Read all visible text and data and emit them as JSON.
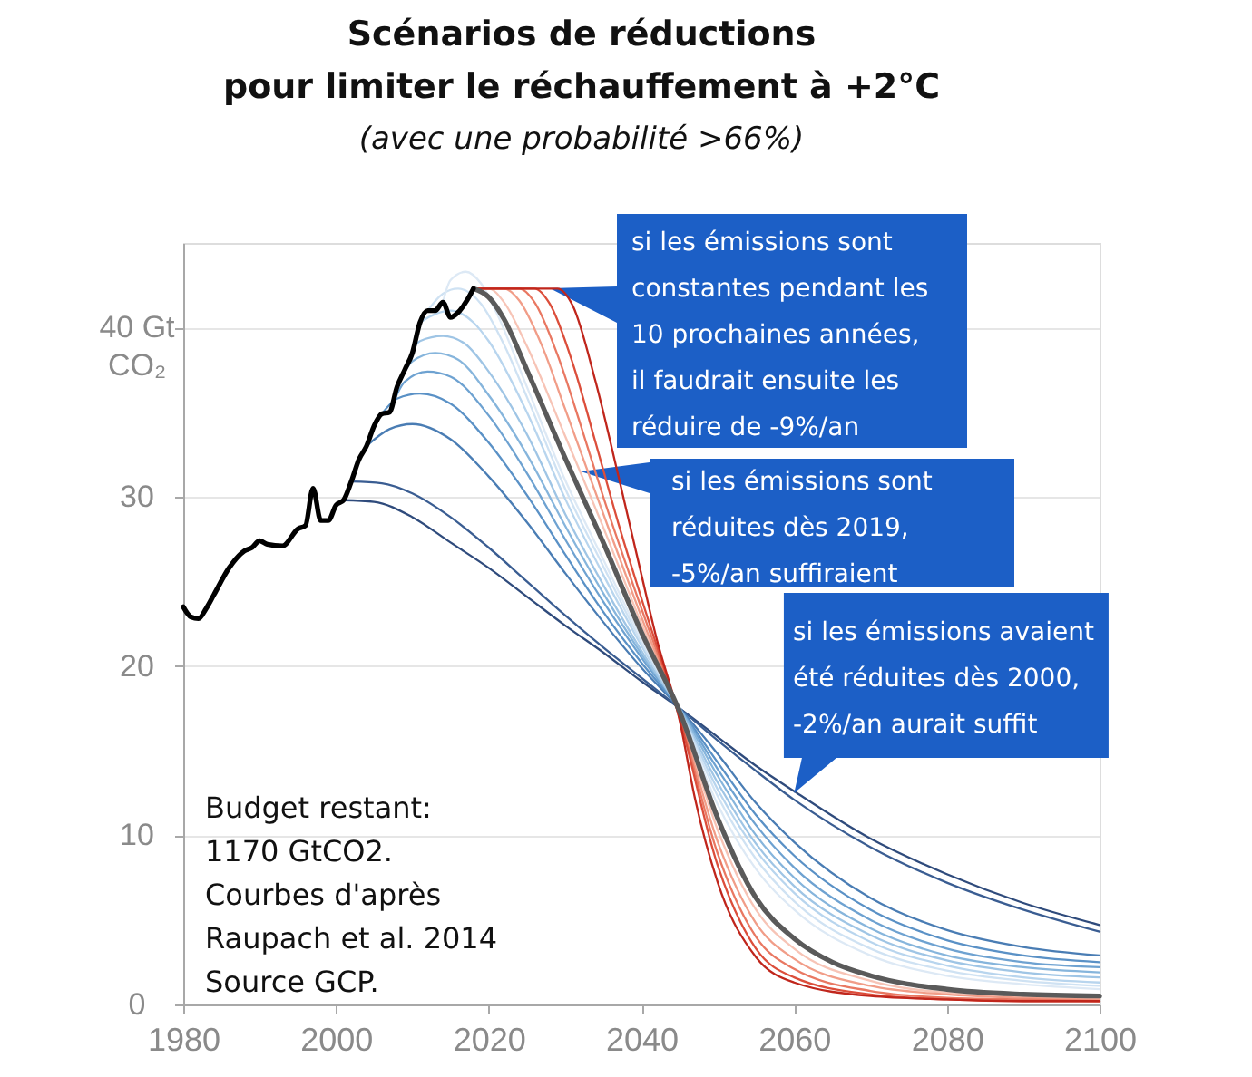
{
  "chart_data": {
    "type": "line",
    "title": "Scénarios de réductions\npour limiter le réchauffement à +2°C",
    "subtitle": "(avec une probabilité >66%)",
    "xlim": [
      1980,
      2100
    ],
    "xticks": [
      1980,
      2000,
      2020,
      2040,
      2060,
      2080,
      2100
    ],
    "ylim": [
      0,
      45
    ],
    "yticks": [
      0,
      10,
      20,
      30,
      {
        "value": 40,
        "label": "40 Gt\nCO₂"
      }
    ],
    "grid": "y",
    "annotations": [
      "si les émissions sont\nconstantes pendant les\n10 prochaines années,\nil faudrait ensuite les\nréduire de -9%/an",
      "si les émissions sont\nréduites dès 2019,\n-5%/an suffiraient",
      {
        "text": "si les émissions avaient\nété réduites dès 2000,\n-2%/an aurait suffit",
        "x": 2060,
        "y": 12.5
      },
      "Budget restant:\n1170 GtCO2.\nCourbes d'après\nRaupach et al. 2014\nSource GCP."
    ],
    "series": [
      {
        "color": "#2f4b7c",
        "x": [
          2001,
          2005,
          2010,
          2015,
          2020,
          2025,
          2030,
          2035,
          2040,
          2045,
          2050,
          2055,
          2060,
          2070,
          2080,
          2090,
          2100
        ],
        "values": [
          29.8,
          29.7,
          28.8,
          27.3,
          25.8,
          24.1,
          22.4,
          20.8,
          19.1,
          17.5,
          15.8,
          14.1,
          12.6,
          9.8,
          7.7,
          6.0,
          4.7
        ]
      },
      {
        "color": "#3a5d92",
        "x": [
          2002,
          2006,
          2010,
          2015,
          2020,
          2025,
          2030,
          2035,
          2040,
          2045,
          2050,
          2055,
          2060,
          2070,
          2080,
          2090,
          2100
        ],
        "values": [
          30.9,
          30.8,
          30.2,
          28.8,
          27.0,
          25.0,
          23.0,
          21.1,
          19.3,
          17.5,
          15.6,
          13.8,
          12.1,
          9.3,
          7.2,
          5.6,
          4.3
        ]
      },
      {
        "color": "#4a7db4",
        "x": [
          2004,
          2007,
          2010,
          2015,
          2020,
          2025,
          2030,
          2035,
          2040,
          2045,
          2050,
          2055,
          2060,
          2070,
          2080,
          2090,
          2100
        ],
        "values": [
          33.0,
          34.0,
          34.3,
          33.4,
          31.2,
          28.5,
          25.5,
          22.6,
          19.9,
          17.5,
          14.8,
          11.9,
          9.6,
          6.3,
          4.4,
          3.4,
          2.9
        ]
      },
      {
        "color": "#5a91c6",
        "x": [
          2006,
          2008,
          2011,
          2015,
          2020,
          2025,
          2030,
          2035,
          2040,
          2045,
          2050,
          2055,
          2060,
          2070,
          2080,
          2090,
          2100
        ],
        "values": [
          34.9,
          35.8,
          36.1,
          35.5,
          33.2,
          30.1,
          26.6,
          23.2,
          20.2,
          17.5,
          14.3,
          11.2,
          8.8,
          5.6,
          3.8,
          2.9,
          2.5
        ]
      },
      {
        "color": "#6ea2d1",
        "x": [
          2007,
          2009,
          2012,
          2015,
          2020,
          2025,
          2030,
          2035,
          2040,
          2045,
          2050,
          2055,
          2060,
          2070,
          2080,
          2090,
          2100
        ],
        "values": [
          35.0,
          36.8,
          37.4,
          37.1,
          34.8,
          31.4,
          27.5,
          23.8,
          20.5,
          17.5,
          13.9,
          10.6,
          8.1,
          5.0,
          3.3,
          2.5,
          2.2
        ]
      },
      {
        "color": "#86b5dc",
        "x": [
          2008,
          2010,
          2013,
          2016,
          2020,
          2025,
          2030,
          2035,
          2040,
          2045,
          2050,
          2055,
          2060,
          2070,
          2080,
          2090,
          2100
        ],
        "values": [
          36.5,
          38.0,
          38.5,
          38.1,
          36.0,
          32.5,
          28.3,
          24.3,
          20.7,
          17.5,
          13.5,
          10.0,
          7.5,
          4.5,
          2.9,
          2.2,
          1.9
        ]
      },
      {
        "color": "#9fc5e5",
        "x": [
          2009,
          2011,
          2014,
          2017,
          2020,
          2025,
          2030,
          2035,
          2040,
          2045,
          2050,
          2055,
          2060,
          2070,
          2080,
          2090,
          2100
        ],
        "values": [
          37.5,
          39.2,
          39.5,
          39.0,
          37.4,
          33.7,
          29.0,
          24.8,
          20.9,
          17.4,
          13.1,
          9.5,
          7.0,
          4.1,
          2.6,
          1.9,
          1.6
        ]
      },
      {
        "color": "#b8d5ee",
        "x": [
          2011,
          2013,
          2015,
          2018,
          2020,
          2025,
          2030,
          2035,
          2040,
          2045,
          2050,
          2055,
          2060,
          2070,
          2080,
          2090,
          2100
        ],
        "values": [
          40.3,
          40.8,
          41.0,
          40.3,
          39.2,
          35.0,
          29.9,
          25.4,
          21.2,
          17.4,
          12.7,
          9.1,
          6.6,
          3.7,
          2.3,
          1.6,
          1.3
        ]
      },
      {
        "color": "#cfe2f3",
        "x": [
          2012,
          2014,
          2016,
          2019,
          2022,
          2025,
          2030,
          2035,
          2040,
          2045,
          2050,
          2055,
          2060,
          2070,
          2080,
          2090,
          2100
        ],
        "values": [
          41.0,
          42.0,
          42.3,
          41.4,
          39.0,
          35.9,
          30.5,
          25.9,
          21.4,
          17.4,
          12.3,
          8.6,
          6.1,
          3.3,
          2.0,
          1.4,
          1.1
        ]
      },
      {
        "color": "#dde9f5",
        "x": [
          2014,
          2015,
          2017,
          2019,
          2021,
          2025,
          2030,
          2035,
          2040,
          2045,
          2050,
          2055,
          2060,
          2070,
          2080,
          2090,
          2100
        ],
        "values": [
          41.5,
          42.8,
          43.3,
          42.6,
          40.9,
          36.5,
          31.0,
          26.3,
          21.6,
          17.3,
          11.8,
          8.0,
          5.6,
          2.9,
          1.7,
          1.2,
          0.9
        ]
      },
      {
        "color": "#f7c4b6",
        "x": [
          2018,
          2020,
          2022,
          2025,
          2030,
          2035,
          2040,
          2045,
          2050,
          2055,
          2060,
          2070,
          2080,
          2090,
          2100
        ],
        "values": [
          42.3,
          42.3,
          41.5,
          38.9,
          33.6,
          28.2,
          22.5,
          17.2,
          10.3,
          5.6,
          3.3,
          1.4,
          0.7,
          0.5,
          0.4
        ]
      },
      {
        "color": "#f19d88",
        "x": [
          2018,
          2022,
          2024,
          2027,
          2030,
          2035,
          2040,
          2045,
          2050,
          2055,
          2060,
          2070,
          2080,
          2090,
          2100
        ],
        "values": [
          42.3,
          42.3,
          41.6,
          38.9,
          35.2,
          29.0,
          22.9,
          17.1,
          9.6,
          4.8,
          2.7,
          1.1,
          0.6,
          0.4,
          0.3
        ]
      },
      {
        "color": "#e97862",
        "x": [
          2018,
          2024,
          2026,
          2029,
          2032,
          2035,
          2040,
          2045,
          2050,
          2055,
          2060,
          2070,
          2080,
          2090,
          2100
        ],
        "values": [
          42.3,
          42.3,
          41.5,
          38.4,
          34.3,
          30.0,
          23.4,
          17.0,
          8.9,
          4.0,
          2.1,
          0.8,
          0.4,
          0.3,
          0.2
        ]
      },
      {
        "color": "#dc4e3b",
        "x": [
          2018,
          2026,
          2028,
          2031,
          2034,
          2037,
          2040,
          2045,
          2050,
          2055,
          2060,
          2070,
          2080,
          2090,
          2100
        ],
        "values": [
          42.3,
          42.3,
          41.4,
          37.9,
          33.2,
          28.4,
          24.0,
          16.9,
          8.2,
          3.3,
          1.6,
          0.6,
          0.3,
          0.2,
          0.2
        ]
      },
      {
        "color": "#c0261c",
        "x": [
          2018,
          2029,
          2031,
          2034,
          2037,
          2040,
          2042,
          2045,
          2047,
          2050,
          2055,
          2060,
          2070,
          2080,
          2090,
          2100
        ],
        "values": [
          42.3,
          42.3,
          41.3,
          36.8,
          31.2,
          25.4,
          21.6,
          16.8,
          12.2,
          7.2,
          2.8,
          1.3,
          0.5,
          0.3,
          0.2,
          0.2
        ]
      },
      {
        "color": "#5a5a5a",
        "x": [
          2018,
          2020,
          2022,
          2025,
          2030,
          2035,
          2040,
          2045,
          2050,
          2055,
          2060,
          2065,
          2070,
          2080,
          2090,
          2100
        ],
        "values": [
          42.3,
          41.8,
          40.5,
          37.5,
          32.3,
          27.3,
          22.0,
          17.3,
          11.0,
          6.3,
          3.9,
          2.5,
          1.7,
          0.9,
          0.6,
          0.5
        ]
      },
      {
        "color": "#000000",
        "x": [
          1980,
          1981,
          1982,
          1983,
          1984,
          1986,
          1988,
          1989,
          1990,
          1991,
          1993,
          1995,
          1996,
          1997,
          1998,
          1999,
          2000,
          2001,
          2002,
          2003,
          2004,
          2005,
          2006,
          2007,
          2008,
          2009,
          2010,
          2011,
          2012,
          2013,
          2014,
          2015,
          2016,
          2017,
          2018
        ],
        "values": [
          23.5,
          22.9,
          22.8,
          23.4,
          24.2,
          25.8,
          26.8,
          27.0,
          27.4,
          27.2,
          27.1,
          28.1,
          28.3,
          30.5,
          28.6,
          28.6,
          29.5,
          29.8,
          30.9,
          32.2,
          33.0,
          34.2,
          34.9,
          35.0,
          36.5,
          37.5,
          38.5,
          40.3,
          41.0,
          41.0,
          41.5,
          40.6,
          40.9,
          41.5,
          42.3
        ]
      }
    ]
  }
}
